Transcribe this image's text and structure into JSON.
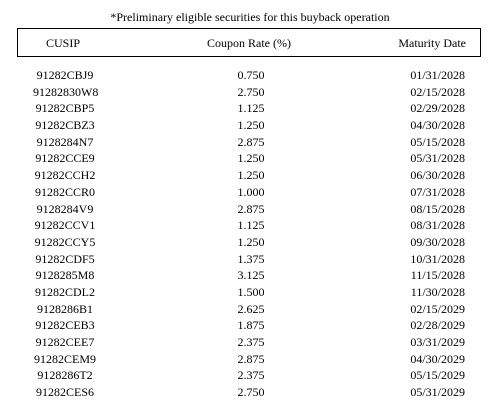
{
  "caption": "*Preliminary eligible securities for this buyback operation",
  "table": {
    "headers": {
      "cusip": "CUSIP",
      "coupon": "Coupon Rate (%)",
      "maturity": "Maturity Date"
    },
    "rows": [
      {
        "cusip": "91282CBJ9",
        "coupon": "0.750",
        "maturity": "01/31/2028"
      },
      {
        "cusip": "91282830W8",
        "coupon": "2.750",
        "maturity": "02/15/2028"
      },
      {
        "cusip": "91282CBP5",
        "coupon": "1.125",
        "maturity": "02/29/2028"
      },
      {
        "cusip": "91282CBZ3",
        "coupon": "1.250",
        "maturity": "04/30/2028"
      },
      {
        "cusip": "9128284N7",
        "coupon": "2.875",
        "maturity": "05/15/2028"
      },
      {
        "cusip": "91282CCE9",
        "coupon": "1.250",
        "maturity": "05/31/2028"
      },
      {
        "cusip": "91282CCH2",
        "coupon": "1.250",
        "maturity": "06/30/2028"
      },
      {
        "cusip": "91282CCR0",
        "coupon": "1.000",
        "maturity": "07/31/2028"
      },
      {
        "cusip": "9128284V9",
        "coupon": "2.875",
        "maturity": "08/15/2028"
      },
      {
        "cusip": "91282CCV1",
        "coupon": "1.125",
        "maturity": "08/31/2028"
      },
      {
        "cusip": "91282CCY5",
        "coupon": "1.250",
        "maturity": "09/30/2028"
      },
      {
        "cusip": "91282CDF5",
        "coupon": "1.375",
        "maturity": "10/31/2028"
      },
      {
        "cusip": "9128285M8",
        "coupon": "3.125",
        "maturity": "11/15/2028"
      },
      {
        "cusip": "91282CDL2",
        "coupon": "1.500",
        "maturity": "11/30/2028"
      },
      {
        "cusip": "9128286B1",
        "coupon": "2.625",
        "maturity": "02/15/2029"
      },
      {
        "cusip": "91282CEB3",
        "coupon": "1.875",
        "maturity": "02/28/2029"
      },
      {
        "cusip": "91282CEE7",
        "coupon": "2.375",
        "maturity": "03/31/2029"
      },
      {
        "cusip": "91282CEM9",
        "coupon": "2.875",
        "maturity": "04/30/2029"
      },
      {
        "cusip": "9128286T2",
        "coupon": "2.375",
        "maturity": "05/15/2029"
      },
      {
        "cusip": "91282CES6",
        "coupon": "2.750",
        "maturity": "05/31/2029"
      }
    ]
  }
}
